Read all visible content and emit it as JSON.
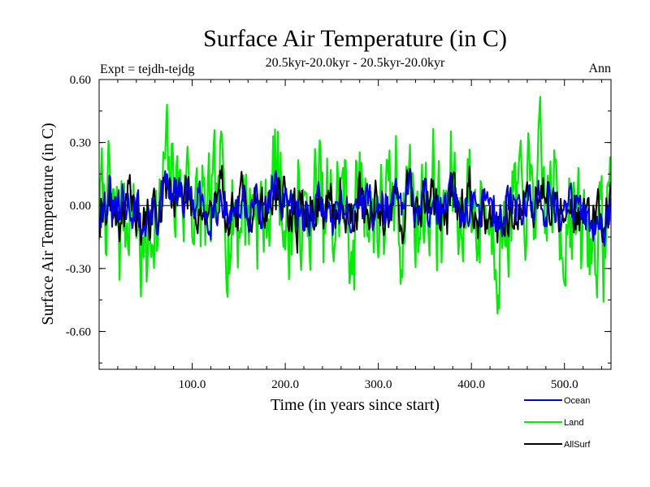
{
  "chart_data": {
    "type": "line",
    "title": "Surface Air Temperature (in C)",
    "subtitle": "20.5kyr-20.0kyr - 20.5kyr-20.0kyr",
    "left_label": "Expt = tejdh-tejdg",
    "right_label": "Ann",
    "xlabel": "Time (in years since start)",
    "ylabel": "Surface Air Temperature (in C)",
    "xlim": [
      0,
      550
    ],
    "ylim": [
      -0.78,
      0.6
    ],
    "x_ticks": [
      {
        "value": 100,
        "label": "100.0"
      },
      {
        "value": 200,
        "label": "200.0"
      },
      {
        "value": 300,
        "label": "300.0"
      },
      {
        "value": 400,
        "label": "400.0"
      },
      {
        "value": 500,
        "label": "500.0"
      }
    ],
    "y_ticks": [
      {
        "value": 0.6,
        "label": "0.60"
      },
      {
        "value": 0.3,
        "label": "0.30"
      },
      {
        "value": 0.0,
        "label": "0.00"
      },
      {
        "value": -0.3,
        "label": "-0.30"
      },
      {
        "value": -0.6,
        "label": "-0.60"
      }
    ],
    "zero_line": true,
    "series": [
      {
        "name": "Land",
        "color": "#00ee00",
        "amp": 0.29,
        "seed": 7
      },
      {
        "name": "AllSurf",
        "color": "#000000",
        "amp": 0.13,
        "seed": 19
      },
      {
        "name": "Ocean",
        "color": "#0000ee",
        "amp": 0.11,
        "seed": 31
      }
    ],
    "legend_order": [
      "Ocean",
      "Land",
      "AllSurf"
    ],
    "n_points": 550
  }
}
